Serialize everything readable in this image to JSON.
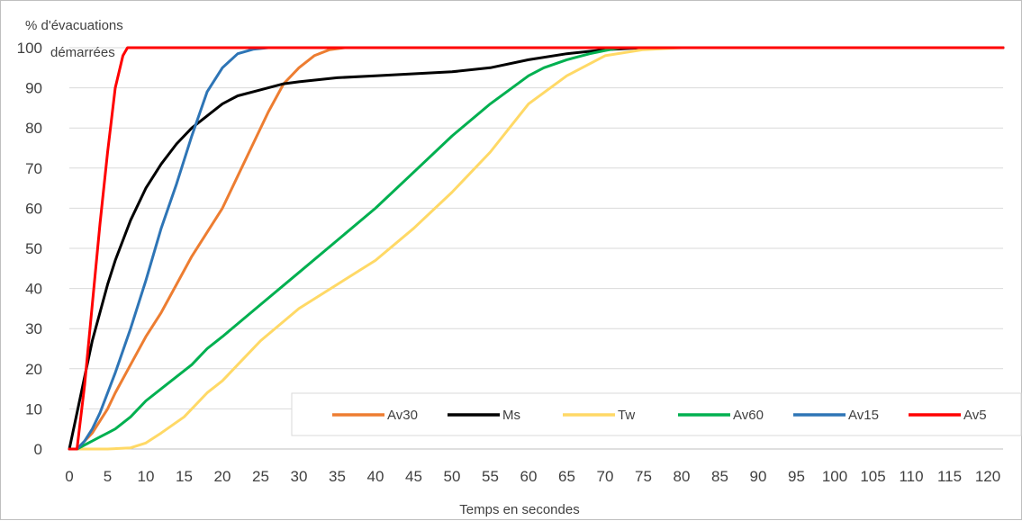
{
  "chart_data": {
    "type": "line",
    "ylabel_line1": "% d'évacuations",
    "ylabel_line2": "démarrées",
    "xlabel": "Temps en secondes",
    "xlim": [
      0,
      122
    ],
    "ylim": [
      0,
      100
    ],
    "x_ticks": [
      0,
      5,
      10,
      15,
      20,
      25,
      30,
      35,
      40,
      45,
      50,
      55,
      60,
      65,
      70,
      75,
      80,
      85,
      90,
      95,
      100,
      105,
      110,
      115,
      120
    ],
    "y_ticks": [
      0,
      10,
      20,
      30,
      40,
      50,
      60,
      70,
      80,
      90,
      100
    ],
    "grid": "horizontal",
    "legend_position": "bottom-right",
    "series": [
      {
        "name": "Av30",
        "color": "#ED7D31",
        "x": [
          0,
          1,
          2,
          3,
          4,
          5,
          6,
          8,
          10,
          12,
          14,
          16,
          18,
          20,
          22,
          24,
          26,
          28,
          30,
          32,
          34,
          36,
          122
        ],
        "y": [
          0,
          0,
          2,
          4,
          7,
          10,
          14,
          21,
          28,
          34,
          41,
          48,
          54,
          60,
          68,
          76,
          84,
          91,
          95,
          98,
          99.5,
          100,
          100
        ]
      },
      {
        "name": "Ms",
        "color": "#000000",
        "x": [
          0,
          1,
          2,
          3,
          4,
          5,
          6,
          7,
          8,
          10,
          12,
          14,
          16,
          18,
          20,
          22,
          25,
          28,
          30,
          35,
          40,
          45,
          50,
          55,
          60,
          65,
          70,
          75,
          122
        ],
        "y": [
          0,
          9,
          18,
          27,
          34,
          41,
          47,
          52,
          57,
          65,
          71,
          76,
          80,
          83,
          86,
          88,
          89.5,
          91,
          91.5,
          92.5,
          93,
          93.5,
          94,
          95,
          97,
          98.5,
          99.5,
          100,
          100
        ]
      },
      {
        "name": "Tw",
        "color": "#FFD966",
        "x": [
          0,
          5,
          8,
          10,
          12,
          15,
          18,
          20,
          22,
          25,
          30,
          35,
          40,
          45,
          50,
          55,
          60,
          65,
          70,
          75,
          80,
          122
        ],
        "y": [
          0,
          0,
          0.3,
          1.5,
          4,
          8,
          14,
          17,
          21,
          27,
          35,
          41,
          47,
          55,
          64,
          74,
          86,
          93,
          98,
          99.5,
          100,
          100
        ]
      },
      {
        "name": "Av60",
        "color": "#00B050",
        "x": [
          0,
          1,
          2,
          3,
          4,
          5,
          6,
          8,
          10,
          12,
          14,
          16,
          18,
          20,
          25,
          30,
          35,
          40,
          45,
          50,
          55,
          60,
          62,
          65,
          68,
          70,
          72,
          122
        ],
        "y": [
          0,
          0,
          1,
          2,
          3,
          4,
          5,
          8,
          12,
          15,
          18,
          21,
          25,
          28,
          36,
          44,
          52,
          60,
          69,
          78,
          86,
          93,
          95,
          97,
          98.5,
          99.3,
          100,
          100
        ]
      },
      {
        "name": "Av15",
        "color": "#2E75B6",
        "x": [
          0,
          1,
          2,
          3,
          4,
          5,
          6,
          8,
          10,
          12,
          14,
          16,
          18,
          20,
          22,
          24,
          26,
          122
        ],
        "y": [
          0,
          0,
          2,
          5,
          9,
          14,
          19,
          30,
          42,
          55,
          66,
          78,
          89,
          95,
          98.5,
          99.6,
          100,
          100
        ]
      },
      {
        "name": "Av5",
        "color": "#FF0000",
        "x": [
          0,
          1,
          2,
          3,
          4,
          5,
          6,
          7,
          7.6,
          122
        ],
        "y": [
          0,
          0,
          16,
          36,
          56,
          74,
          90,
          98,
          100,
          100
        ]
      }
    ]
  }
}
